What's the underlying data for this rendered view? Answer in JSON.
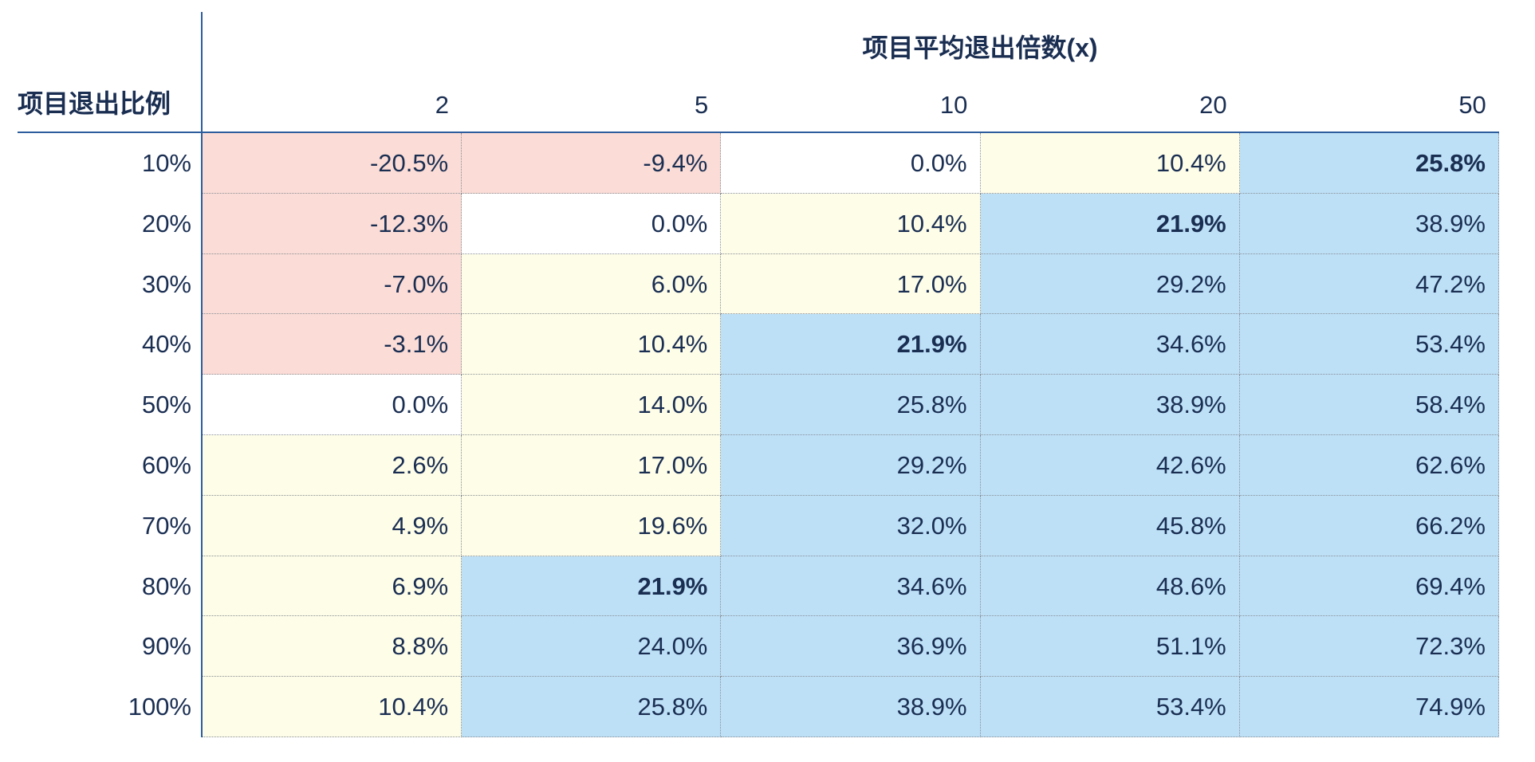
{
  "chart_data": {
    "type": "table",
    "title": "项目平均退出倍数(x)",
    "row_header_title": "项目退出比例",
    "columns": [
      "2",
      "5",
      "10",
      "20",
      "50"
    ],
    "rows": [
      "10%",
      "20%",
      "30%",
      "40%",
      "50%",
      "60%",
      "70%",
      "80%",
      "90%",
      "100%"
    ],
    "values": [
      [
        "-20.5%",
        "-9.4%",
        "0.0%",
        "10.4%",
        "25.8%"
      ],
      [
        "-12.3%",
        "0.0%",
        "10.4%",
        "21.9%",
        "38.9%"
      ],
      [
        "-7.0%",
        "6.0%",
        "17.0%",
        "29.2%",
        "47.2%"
      ],
      [
        "-3.1%",
        "10.4%",
        "21.9%",
        "34.6%",
        "53.4%"
      ],
      [
        "0.0%",
        "14.0%",
        "25.8%",
        "38.9%",
        "58.4%"
      ],
      [
        "2.6%",
        "17.0%",
        "29.2%",
        "42.6%",
        "62.6%"
      ],
      [
        "4.9%",
        "19.6%",
        "32.0%",
        "45.8%",
        "66.2%"
      ],
      [
        "6.9%",
        "21.9%",
        "34.6%",
        "48.6%",
        "69.4%"
      ],
      [
        "8.8%",
        "24.0%",
        "36.9%",
        "51.1%",
        "72.3%"
      ],
      [
        "10.4%",
        "25.8%",
        "38.9%",
        "53.4%",
        "74.9%"
      ]
    ],
    "numeric_values": [
      [
        -20.5,
        -9.4,
        0.0,
        10.4,
        25.8
      ],
      [
        -12.3,
        0.0,
        10.4,
        21.9,
        38.9
      ],
      [
        -7.0,
        6.0,
        17.0,
        29.2,
        47.2
      ],
      [
        -3.1,
        10.4,
        21.9,
        34.6,
        53.4
      ],
      [
        0.0,
        14.0,
        25.8,
        38.9,
        58.4
      ],
      [
        2.6,
        17.0,
        29.2,
        42.6,
        62.6
      ],
      [
        4.9,
        19.6,
        32.0,
        45.8,
        66.2
      ],
      [
        6.9,
        21.9,
        34.6,
        48.6,
        69.4
      ],
      [
        8.8,
        24.0,
        36.9,
        51.1,
        72.3
      ],
      [
        10.4,
        25.8,
        38.9,
        53.4,
        74.9
      ]
    ],
    "categories": [
      [
        "neg",
        "neg",
        "zero",
        "low",
        "high"
      ],
      [
        "neg",
        "zero",
        "low",
        "high",
        "high"
      ],
      [
        "neg",
        "low",
        "low",
        "high",
        "high"
      ],
      [
        "neg",
        "low",
        "high",
        "high",
        "high"
      ],
      [
        "zero",
        "low",
        "high",
        "high",
        "high"
      ],
      [
        "low",
        "low",
        "high",
        "high",
        "high"
      ],
      [
        "low",
        "low",
        "high",
        "high",
        "high"
      ],
      [
        "low",
        "high",
        "high",
        "high",
        "high"
      ],
      [
        "low",
        "high",
        "high",
        "high",
        "high"
      ],
      [
        "low",
        "high",
        "high",
        "high",
        "high"
      ]
    ],
    "bold_cells": [
      [
        0,
        4
      ],
      [
        1,
        3
      ],
      [
        3,
        2
      ],
      [
        7,
        1
      ]
    ],
    "colors": {
      "neg": "#fbdcd6",
      "zero": "#ffffff",
      "low": "#fefde8",
      "high": "#bde0f7",
      "text": "#1a2e52",
      "rule": "#2d5d9c"
    },
    "xlabel": "项目平均退出倍数(x)",
    "ylabel": "项目退出比例"
  }
}
